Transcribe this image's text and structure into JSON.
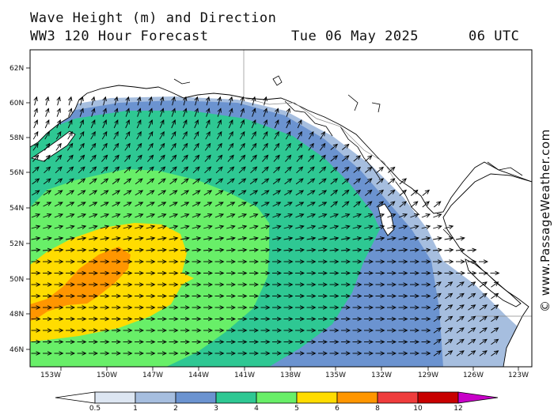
{
  "header": {
    "line1": "Wave Height (m) and Direction",
    "model": "WW3 120 Hour Forecast",
    "date": "Tue 06 May 2025",
    "time": "06 UTC"
  },
  "credit": "© www.PassageWeather.com",
  "axes": {
    "lat_labels": [
      "62N",
      "60N",
      "58N",
      "56N",
      "54N",
      "52N",
      "50N",
      "48N",
      "46N"
    ],
    "lon_labels": [
      "153W",
      "150W",
      "147W",
      "144W",
      "141W",
      "138W",
      "135W",
      "132W",
      "129W",
      "126W",
      "123W"
    ]
  },
  "legend": {
    "ticks": [
      "0.5",
      "1",
      "2",
      "3",
      "4",
      "5",
      "6",
      "8",
      "10",
      "12"
    ],
    "colors": [
      "#ffffff",
      "#dde6f2",
      "#a6bedf",
      "#6b93d0",
      "#2ec893",
      "#68ef68",
      "#ffdc00",
      "#ff9600",
      "#ef3c3c",
      "#c80000",
      "#c800c8"
    ]
  },
  "chart_data": {
    "type": "heatmap",
    "title": "Wave Height (m) and Direction",
    "variable": "significant wave height (m)",
    "units": "m",
    "lat_range": [
      45,
      63
    ],
    "lon_range": [
      -155,
      -122.5
    ],
    "contour_levels": [
      0.5,
      1,
      2,
      3,
      4,
      5,
      6,
      8,
      10,
      12
    ],
    "max_region": {
      "range_m": "6-8",
      "lat_range": [
        48,
        52
      ],
      "lon_range": [
        -155,
        -148
      ]
    },
    "wave_direction": "arrows toward NNE in north-central Gulf of Alaska, toward E/ENE in south"
  }
}
